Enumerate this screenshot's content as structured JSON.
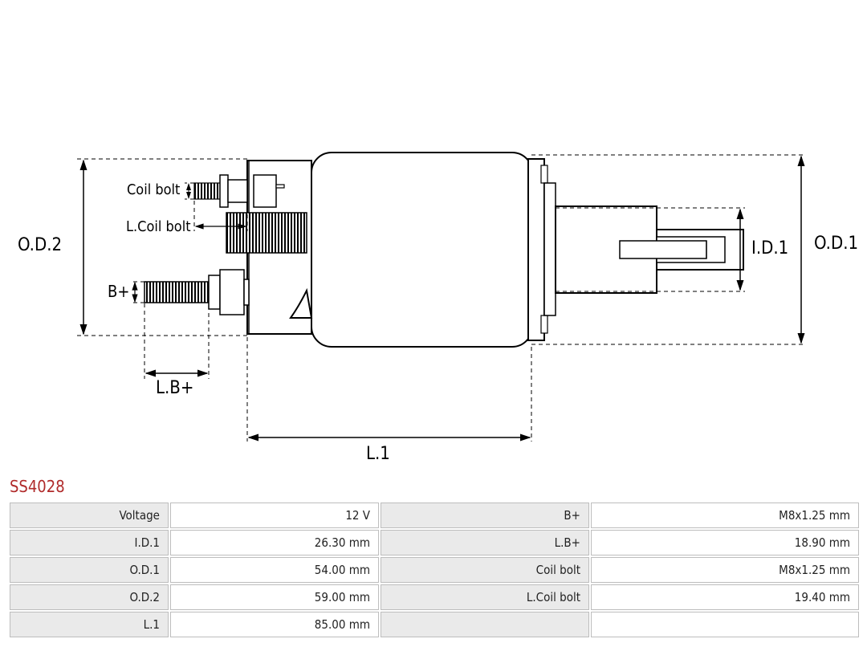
{
  "part_number": "SS4028",
  "diagram": {
    "type": "engineering-drawing",
    "stroke_color": "#000000",
    "background_color": "#ffffff",
    "stroke_width_main": 2,
    "stroke_width_thin": 1.2,
    "dash_pattern": "5 4",
    "font_size_dim": 22,
    "labels": {
      "od2": "O.D.2",
      "od1": "O.D.1",
      "id1": "I.D.1",
      "l1": "L.1",
      "lbp": "L.B+",
      "bp": "B+",
      "coil_bolt": "Coil bolt",
      "lcoil_bolt": "L.Coil bolt"
    }
  },
  "spec_table": {
    "header_bg": "#eaeaea",
    "cell_bg": "#ffffff",
    "border_color": "#bdbdbd",
    "title_color": "#b02a2a",
    "font_size": 15,
    "rows": [
      {
        "l1": "Voltage",
        "v1": "12 V",
        "l2": "B+",
        "v2": "M8x1.25 mm"
      },
      {
        "l1": "I.D.1",
        "v1": "26.30 mm",
        "l2": "L.B+",
        "v2": "18.90 mm"
      },
      {
        "l1": "O.D.1",
        "v1": "54.00 mm",
        "l2": "Coil bolt",
        "v2": "M8x1.25 mm"
      },
      {
        "l1": "O.D.2",
        "v1": "59.00 mm",
        "l2": "L.Coil bolt",
        "v2": "19.40 mm"
      },
      {
        "l1": "L.1",
        "v1": "85.00 mm",
        "l2": "",
        "v2": ""
      }
    ]
  }
}
